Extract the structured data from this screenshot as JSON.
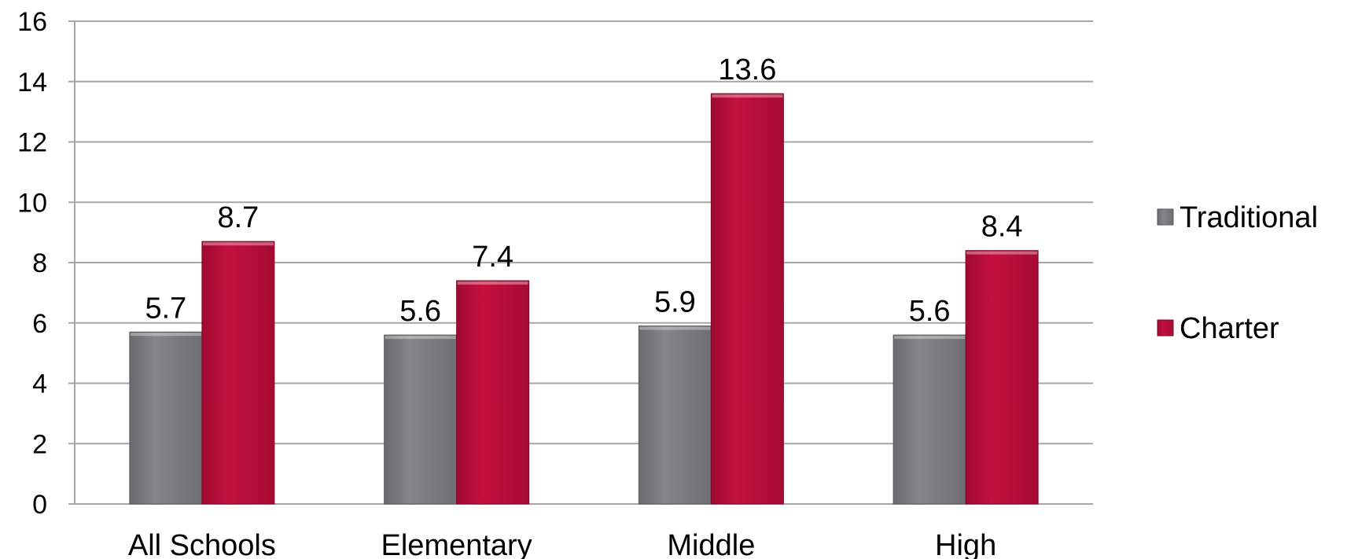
{
  "chart_data": {
    "type": "bar",
    "categories": [
      "All Schools",
      "Elementary",
      "Middle",
      "High"
    ],
    "series": [
      {
        "name": "Traditional",
        "values": [
          5.7,
          5.6,
          5.9,
          5.6
        ],
        "color": "#7f7e82"
      },
      {
        "name": "Charter",
        "values": [
          8.7,
          7.4,
          13.6,
          8.4
        ],
        "color": "#b80d3a"
      }
    ],
    "title": "",
    "xlabel": "",
    "ylabel": "",
    "ylim": [
      0,
      16
    ],
    "yticks": [
      "0",
      "2",
      "4",
      "6",
      "8",
      "10",
      "12",
      "14",
      "16"
    ],
    "data_labels": [
      [
        "5.7",
        "5.6",
        "5.9",
        "5.6"
      ],
      [
        "8.7",
        "7.4",
        "13.6",
        "8.4"
      ]
    ],
    "grid": true,
    "legend_position": "right",
    "gridline_color": "#a6a6a6"
  }
}
